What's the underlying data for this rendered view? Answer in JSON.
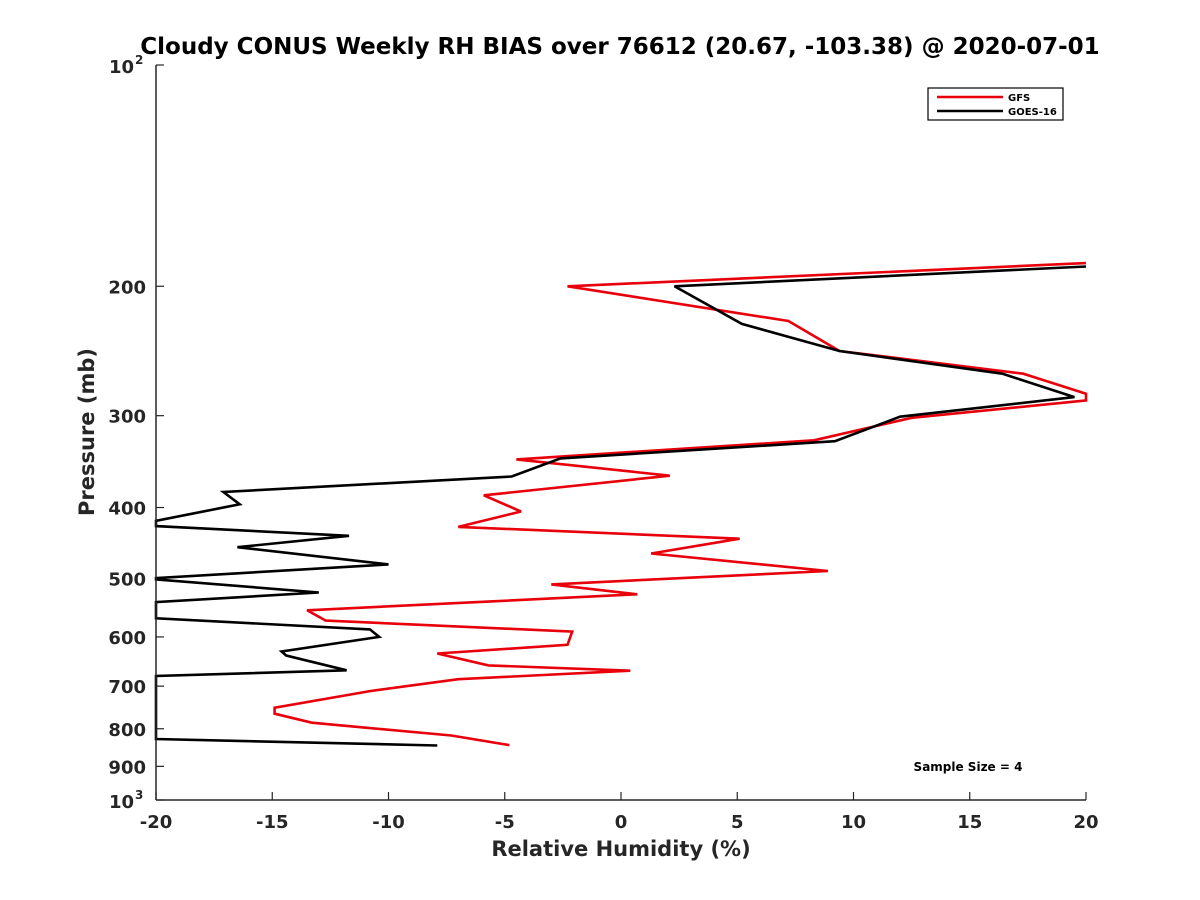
{
  "chart_data": {
    "type": "line",
    "title": "Cloudy CONUS Weekly RH BIAS over 76612 (20.67, -103.38) @ 2020-07-01",
    "xlabel": "Relative Humidity (%)",
    "ylabel": "Pressure (mb)",
    "xlim": [
      -20,
      20
    ],
    "ylim": [
      100,
      1000
    ],
    "yscale": "log",
    "yreversed": true,
    "grid": false,
    "legend_position": "top-right",
    "x_ticks": [
      "-20",
      "-15",
      "-10",
      "-5",
      "0",
      "5",
      "10",
      "15",
      "20"
    ],
    "x_tick_values": [
      -20,
      -15,
      -10,
      -5,
      0,
      5,
      10,
      15,
      20
    ],
    "y_ticks": [
      {
        "value": 100,
        "base": "10",
        "exp": "2"
      },
      {
        "value": 200,
        "label": "200"
      },
      {
        "value": 300,
        "label": "300"
      },
      {
        "value": 400,
        "label": "400"
      },
      {
        "value": 500,
        "label": "500"
      },
      {
        "value": 600,
        "label": "600"
      },
      {
        "value": 700,
        "label": "700"
      },
      {
        "value": 800,
        "label": "800"
      },
      {
        "value": 900,
        "label": "900"
      },
      {
        "value": 1000,
        "base": "10",
        "exp": "3"
      }
    ],
    "series": [
      {
        "name": "GFS",
        "color": "#e8000b",
        "points": [
          {
            "x": 20.0,
            "y": 186
          },
          {
            "x": -2.3,
            "y": 200
          },
          {
            "x": 7.2,
            "y": 223
          },
          {
            "x": 9.4,
            "y": 245
          },
          {
            "x": 17.3,
            "y": 263
          },
          {
            "x": 20.0,
            "y": 280
          },
          {
            "x": 20.0,
            "y": 286
          },
          {
            "x": 12.5,
            "y": 302
          },
          {
            "x": 8.3,
            "y": 324
          },
          {
            "x": -4.5,
            "y": 344
          },
          {
            "x": 2.1,
            "y": 362
          },
          {
            "x": -5.9,
            "y": 385
          },
          {
            "x": -4.3,
            "y": 405
          },
          {
            "x": -7.0,
            "y": 425
          },
          {
            "x": 5.1,
            "y": 441
          },
          {
            "x": 1.3,
            "y": 462
          },
          {
            "x": 8.9,
            "y": 488
          },
          {
            "x": -3.0,
            "y": 509
          },
          {
            "x": 0.7,
            "y": 525
          },
          {
            "x": -13.5,
            "y": 552
          },
          {
            "x": -12.7,
            "y": 570
          },
          {
            "x": -2.1,
            "y": 590
          },
          {
            "x": -2.3,
            "y": 615
          },
          {
            "x": -7.9,
            "y": 632
          },
          {
            "x": -5.7,
            "y": 656
          },
          {
            "x": 0.4,
            "y": 667
          },
          {
            "x": -7.0,
            "y": 685
          },
          {
            "x": -10.8,
            "y": 711
          },
          {
            "x": -14.9,
            "y": 749
          },
          {
            "x": -14.9,
            "y": 763
          },
          {
            "x": -13.3,
            "y": 785
          },
          {
            "x": -7.3,
            "y": 817
          },
          {
            "x": -4.8,
            "y": 842
          }
        ]
      },
      {
        "name": "GOES-16",
        "color": "#000000",
        "points": [
          {
            "x": 20.0,
            "y": 188
          },
          {
            "x": 2.3,
            "y": 200
          },
          {
            "x": 5.2,
            "y": 225
          },
          {
            "x": 9.4,
            "y": 245
          },
          {
            "x": 16.4,
            "y": 263
          },
          {
            "x": 19.5,
            "y": 283
          },
          {
            "x": 12.0,
            "y": 301
          },
          {
            "x": 9.2,
            "y": 325
          },
          {
            "x": -2.6,
            "y": 343
          },
          {
            "x": -4.7,
            "y": 363
          },
          {
            "x": -17.1,
            "y": 381
          },
          {
            "x": -16.4,
            "y": 396
          },
          {
            "x": -20.0,
            "y": 417
          },
          {
            "x": -20.0,
            "y": 424
          },
          {
            "x": -11.7,
            "y": 437
          },
          {
            "x": -16.5,
            "y": 453
          },
          {
            "x": -10.0,
            "y": 478
          },
          {
            "x": -20.0,
            "y": 499
          },
          {
            "x": -20.0,
            "y": 501
          },
          {
            "x": -13.0,
            "y": 522
          },
          {
            "x": -20.0,
            "y": 538
          },
          {
            "x": -20.0,
            "y": 566
          },
          {
            "x": -10.8,
            "y": 586
          },
          {
            "x": -10.4,
            "y": 600
          },
          {
            "x": -14.6,
            "y": 628
          },
          {
            "x": -14.4,
            "y": 636
          },
          {
            "x": -11.8,
            "y": 666
          },
          {
            "x": -20.0,
            "y": 678
          },
          {
            "x": -20.0,
            "y": 826
          },
          {
            "x": -7.9,
            "y": 843
          }
        ]
      }
    ],
    "annotations": [
      "Sample Size = 4"
    ]
  }
}
